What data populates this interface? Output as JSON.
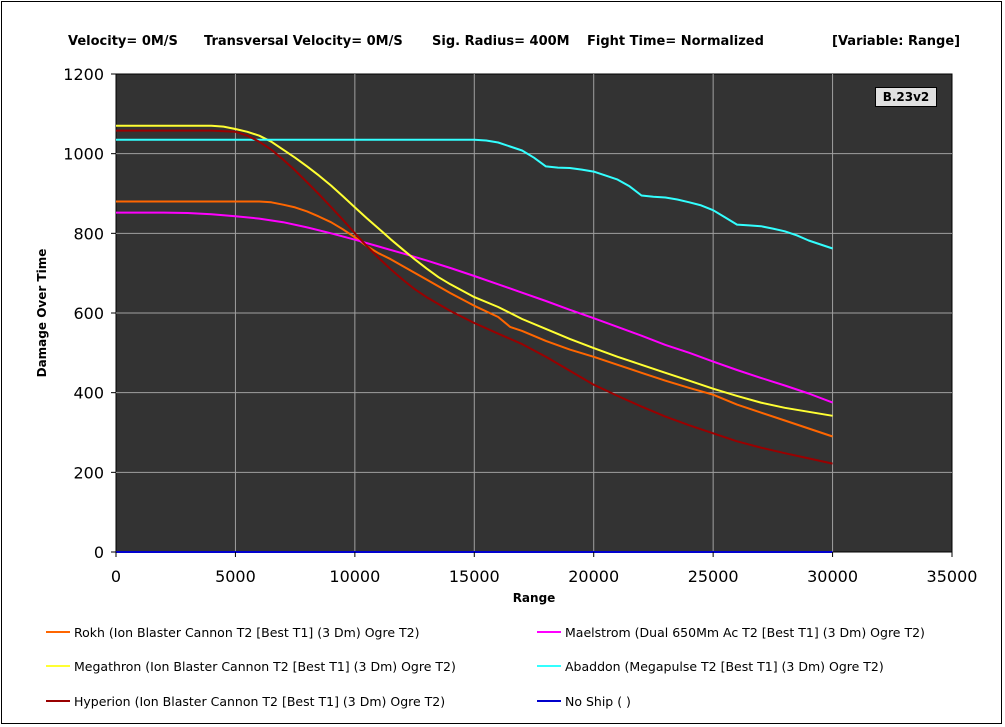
{
  "header": {
    "velocity": "Velocity= 0M/S",
    "transversal": "Transversal Velocity= 0M/S",
    "sig_radius": "Sig. Radius= 400M",
    "fight_time": "Fight Time= Normalized",
    "variable": "[Variable: Range]"
  },
  "badge": "B.23v2",
  "chart_data": {
    "type": "line",
    "xlabel": "Range",
    "ylabel": "Damage Over Time",
    "xlim": [
      0,
      35000
    ],
    "ylim": [
      0,
      1200
    ],
    "xticks": [
      0,
      5000,
      10000,
      15000,
      20000,
      25000,
      30000,
      35000
    ],
    "yticks": [
      0,
      200,
      400,
      600,
      800,
      1000,
      1200
    ],
    "grid": true,
    "background": "#333333",
    "legend_position": "bottom",
    "series": [
      {
        "name": "Rokh (Ion Blaster Cannon T2 [Best T1] (3 Dm) Ogre T2)",
        "color": "#ff6600",
        "x": [
          0,
          2000,
          4000,
          6000,
          6500,
          7000,
          7500,
          8000,
          8500,
          9000,
          9500,
          10000,
          10500,
          11000,
          11500,
          12000,
          13000,
          14000,
          15000,
          16000,
          16500,
          17000,
          18000,
          19000,
          20000,
          21000,
          22000,
          23000,
          24000,
          25000,
          26000,
          27000,
          28000,
          29000,
          30000
        ],
        "y": [
          880,
          880,
          880,
          880,
          878,
          872,
          865,
          855,
          842,
          828,
          810,
          790,
          768,
          750,
          735,
          718,
          684,
          650,
          618,
          590,
          565,
          555,
          530,
          508,
          490,
          470,
          450,
          430,
          412,
          395,
          370,
          350,
          330,
          310,
          290
        ]
      },
      {
        "name": "Maelstrom (Dual 650Mm Ac T2 [Best T1] (3 Dm) Ogre T2)",
        "color": "#ff00ff",
        "x": [
          0,
          2000,
          3000,
          4000,
          5000,
          6000,
          7000,
          8000,
          9000,
          10000,
          11000,
          12000,
          13000,
          14000,
          15000,
          16000,
          17000,
          18000,
          19000,
          20000,
          21000,
          22000,
          23000,
          24000,
          25000,
          26000,
          27000,
          28000,
          29000,
          30000
        ],
        "y": [
          852,
          852,
          851,
          848,
          843,
          837,
          828,
          815,
          800,
          784,
          767,
          750,
          732,
          713,
          693,
          672,
          651,
          630,
          608,
          587,
          565,
          543,
          520,
          500,
          478,
          457,
          437,
          418,
          398,
          375
        ]
      },
      {
        "name": "Megathron (Ion Blaster Cannon T2 [Best T1] (3 Dm) Ogre T2)",
        "color": "#ffff33",
        "x": [
          0,
          2000,
          4000,
          4500,
          5000,
          5500,
          6000,
          6500,
          7000,
          7500,
          8000,
          8500,
          9000,
          9500,
          10000,
          10500,
          11000,
          11500,
          12000,
          12500,
          13000,
          13500,
          14000,
          15000,
          16000,
          17000,
          18000,
          19000,
          20000,
          21000,
          22000,
          23000,
          24000,
          25000,
          26000,
          27000,
          28000,
          29000,
          30000
        ],
        "y": [
          1070,
          1070,
          1070,
          1068,
          1062,
          1055,
          1045,
          1030,
          1010,
          990,
          968,
          945,
          920,
          893,
          865,
          838,
          812,
          785,
          760,
          735,
          712,
          690,
          672,
          640,
          615,
          585,
          560,
          535,
          512,
          490,
          470,
          450,
          430,
          410,
          392,
          375,
          362,
          352,
          342
        ]
      },
      {
        "name": "Abaddon (Megapulse T2 [Best T1] (3 Dm) Ogre T2)",
        "color": "#33ffff",
        "x": [
          0,
          5000,
          10000,
          15000,
          15500,
          16000,
          16500,
          17000,
          17500,
          18000,
          18500,
          19000,
          19500,
          20000,
          20500,
          21000,
          21500,
          22000,
          22500,
          23000,
          23500,
          24000,
          24500,
          25000,
          25500,
          26000,
          26500,
          27000,
          27500,
          28000,
          28500,
          29000,
          29500,
          30000
        ],
        "y": [
          1035,
          1035,
          1035,
          1035,
          1033,
          1028,
          1018,
          1008,
          990,
          968,
          965,
          964,
          960,
          955,
          945,
          935,
          918,
          895,
          892,
          890,
          885,
          878,
          870,
          858,
          840,
          822,
          820,
          818,
          812,
          805,
          795,
          782,
          772,
          762
        ]
      },
      {
        "name": "Hyperion (Ion Blaster Cannon T2 [Best T1] (3 Dm) Ogre T2)",
        "color": "#990000",
        "x": [
          0,
          2000,
          4000,
          5000,
          5500,
          6000,
          6500,
          7000,
          7500,
          8000,
          8500,
          9000,
          9500,
          10000,
          10500,
          11000,
          11500,
          12000,
          12500,
          13000,
          14000,
          15000,
          16000,
          17000,
          18000,
          19000,
          20000,
          21000,
          22000,
          23000,
          24000,
          25000,
          26000,
          27000,
          28000,
          29000,
          30000
        ],
        "y": [
          1058,
          1058,
          1058,
          1055,
          1045,
          1030,
          1010,
          985,
          958,
          928,
          898,
          866,
          834,
          800,
          768,
          738,
          710,
          684,
          660,
          640,
          605,
          575,
          548,
          522,
          490,
          455,
          420,
          392,
          365,
          340,
          318,
          298,
          278,
          262,
          248,
          235,
          222
        ]
      },
      {
        "name": "No Ship ( )",
        "color": "#0000cc",
        "x": [
          0,
          30000
        ],
        "y": [
          0,
          0
        ]
      }
    ]
  }
}
